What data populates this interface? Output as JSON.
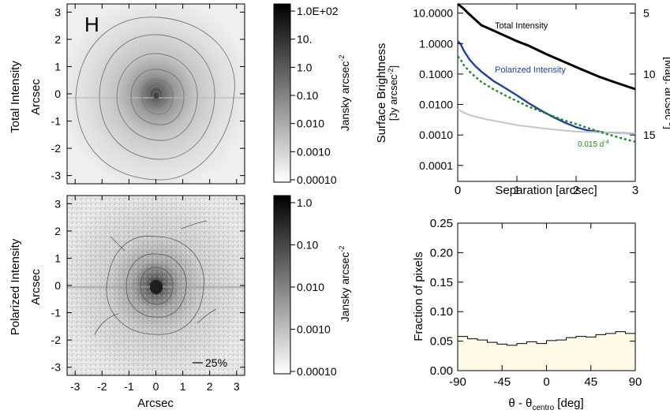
{
  "figure": {
    "band_label": "H",
    "percent_label": "25%"
  },
  "chart_data": [
    {
      "id": "total_intensity_image",
      "type": "heatmap",
      "row_label": "Total Intensity",
      "ylabel": "Arcsec",
      "xlim": [
        -3.3,
        3.3
      ],
      "ylim": [
        -3.3,
        3.3
      ],
      "ticks": [
        -3,
        -2,
        -1,
        0,
        1,
        2,
        3
      ],
      "colorbar": {
        "label": "Jansky arcsec",
        "label_sup": "-2",
        "tick_labels": [
          "1.0E+02",
          "10.",
          "1.0",
          "0.10",
          "0.010",
          "0.0010",
          "0.00010"
        ]
      }
    },
    {
      "id": "polarized_intensity_image",
      "type": "heatmap",
      "row_label": "Polarized Intensity",
      "ylabel": "Arcsec",
      "xlabel": "Arcsec",
      "xlim": [
        -3.3,
        3.3
      ],
      "ylim": [
        -3.3,
        3.3
      ],
      "ticks": [
        -3,
        -2,
        -1,
        0,
        1,
        2,
        3
      ],
      "colorbar": {
        "label": "Jansky arcsec",
        "label_sup": "-2",
        "tick_labels": [
          "1.0",
          "0.10",
          "0.010",
          "0.0010",
          "0.00010"
        ]
      }
    },
    {
      "id": "surface_brightness_profile",
      "type": "line",
      "ylabel_line1": "Surface Brightness",
      "ylabel_line2": "[Jy arcsec",
      "ylabel_line2_sup": "-2",
      "ylabel_line2_end": "]",
      "xlabel": "Separation [arcsec]",
      "y2label": "[Mag. arcsec",
      "y2label_sup": "-2",
      "y2label_end": "]",
      "xlim": [
        0,
        3
      ],
      "ylim": [
        3e-05,
        20
      ],
      "yscale": "log",
      "xticks": [
        "0",
        "1",
        "2",
        "3"
      ],
      "yticks": [
        "10.0000",
        "1.0000",
        "0.1000",
        "0.0100",
        "0.0010",
        "0.0001"
      ],
      "y2ticks": [
        "5",
        "10",
        "15"
      ],
      "series": [
        {
          "name": "Total Intensity",
          "color": "#000000",
          "x": [
            0,
            0.1,
            0.2,
            0.3,
            0.4,
            0.6,
            0.8,
            1.0,
            1.2,
            1.5,
            1.8,
            2.1,
            2.4,
            2.7,
            3.0
          ],
          "y": [
            20,
            14,
            9,
            6,
            4,
            2.7,
            1.8,
            1.2,
            0.85,
            0.45,
            0.25,
            0.14,
            0.08,
            0.05,
            0.032
          ]
        },
        {
          "name": "Polarized Intensity",
          "color": "#1f3faa",
          "x": [
            0,
            0.05,
            0.1,
            0.2,
            0.3,
            0.4,
            0.6,
            0.8,
            1.0,
            1.2,
            1.4,
            1.6,
            1.8,
            2.0,
            2.2,
            2.5,
            2.8,
            3.0
          ],
          "y": [
            1.2,
            0.95,
            0.6,
            0.3,
            0.18,
            0.12,
            0.06,
            0.035,
            0.02,
            0.011,
            0.0065,
            0.004,
            0.0026,
            0.0018,
            0.0014,
            0.0012,
            0.00115,
            0.0011
          ]
        },
        {
          "name": "",
          "color": "#c8c8c8",
          "x": [
            0,
            0.1,
            0.2,
            0.3,
            0.5,
            0.8,
            1.0,
            1.5,
            2.0,
            2.5,
            3.0
          ],
          "y": [
            0.007,
            0.0055,
            0.0045,
            0.004,
            0.0032,
            0.0025,
            0.0021,
            0.0016,
            0.0013,
            0.0012,
            0.0011
          ]
        },
        {
          "name": "0.015 d",
          "name_sup": "-4",
          "color": "#1a8a1a",
          "dashed": true,
          "x": [
            0,
            0.05,
            0.1,
            0.2,
            0.3,
            0.4,
            0.6,
            0.8,
            1.0,
            1.2,
            1.4,
            1.6,
            1.8,
            2.0,
            2.2,
            2.5,
            2.8,
            3.0
          ],
          "y": [
            0.38,
            0.3,
            0.2,
            0.12,
            0.08,
            0.055,
            0.032,
            0.02,
            0.013,
            0.0085,
            0.006,
            0.0042,
            0.003,
            0.0023,
            0.0017,
            0.0011,
            0.00075,
            0.0006
          ]
        }
      ]
    },
    {
      "id": "angle_histogram",
      "type": "bar",
      "ylabel": "Fraction of pixels",
      "xlabel": "θ - θ",
      "xlabel_sub": "centro",
      "xlabel_end": " [deg]",
      "xlim": [
        -90,
        90
      ],
      "ylim": [
        0,
        0.25
      ],
      "xticks": [
        "-90",
        "-45",
        "0",
        "45",
        "90"
      ],
      "yticks": [
        "0.00",
        "0.05",
        "0.10",
        "0.15",
        "0.20",
        "0.25"
      ],
      "bin_edges": [
        -90,
        -80,
        -70,
        -60,
        -50,
        -40,
        -30,
        -20,
        -10,
        0,
        10,
        20,
        30,
        40,
        50,
        60,
        70,
        80,
        90
      ],
      "values": [
        0.058,
        0.054,
        0.052,
        0.048,
        0.045,
        0.043,
        0.046,
        0.049,
        0.046,
        0.051,
        0.052,
        0.056,
        0.058,
        0.057,
        0.061,
        0.063,
        0.066,
        0.063
      ],
      "fill": "#fffbe6"
    }
  ]
}
